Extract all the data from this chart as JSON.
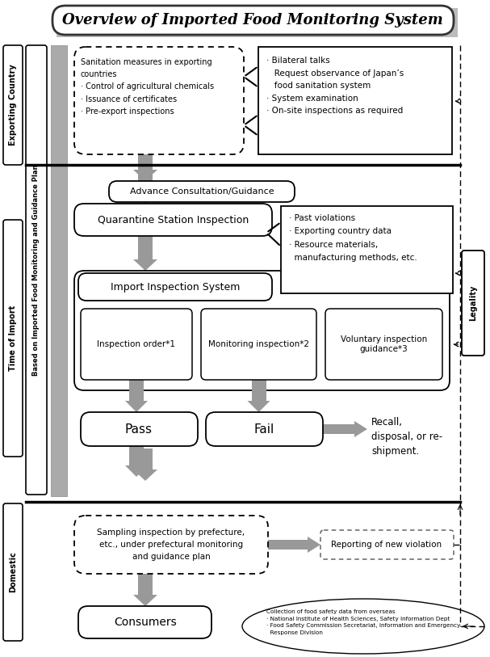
{
  "title": "Overview of Imported Food Monitoring System",
  "bg_color": "#ffffff",
  "sections": {
    "exporting_country": "Exporting Country",
    "time_of_import": "Time of Import",
    "domestic": "Domestic",
    "legality": "Legality",
    "based_on": "Based on Imported Food Monitoring and Guidance Plan"
  },
  "texts": {
    "sanitation": "Sanitation measures in exporting\ncountries\n· Control of agricultural chemicals\n· Issuance of certificates\n· Pre-export inspections",
    "bilateral": "· Bilateral talks\n   Request observance of Japan’s\n   food sanitation system\n· System examination\n· On-site inspections as required",
    "advance": "Advance Consultation/Guidance",
    "quarantine": "Quarantine Station Inspection",
    "past_violations": "· Past violations\n· Exporting country data\n· Resource materials,\n  manufacturing methods, etc.",
    "import_inspection": "Import Inspection System",
    "inspection_order": "Inspection order*1",
    "monitoring": "Monitoring inspection*2",
    "voluntary": "Voluntary inspection\nguidance*3",
    "pass": "Pass",
    "fail": "Fail",
    "recall": "Recall,\ndisposal, or re-\nshipment.",
    "sampling": "Sampling inspection by prefecture,\netc., under prefectural monitoring\nand guidance plan",
    "reporting": "Reporting of new violation",
    "consumers": "Consumers",
    "collection": "Collection of food safety data from overseas\n· National Institute of Health Sciences, Safety Information Dept\n· Food Safety Commission Secretariat, Information and Emergency\n  Response Division"
  },
  "gray": "#999999",
  "dark_gray": "#777777"
}
